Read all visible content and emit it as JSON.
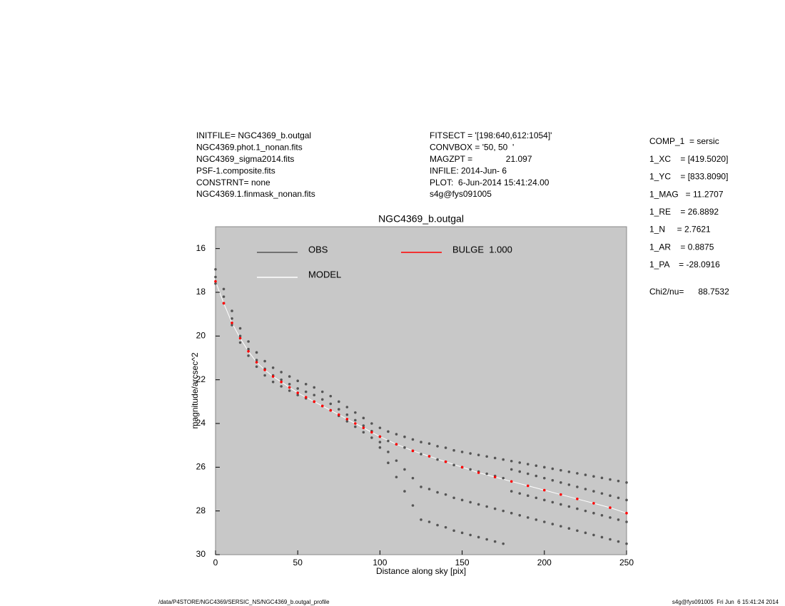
{
  "header": {
    "left": [
      "INITFILE= NGC4369_b.outgal",
      "NGC4369.phot.1_nonan.fits",
      "NGC4369_sigma2014.fits",
      "PSF-1.composite.fits",
      "CONSTRNT= none",
      "NGC4369.1.finmask_nonan.fits"
    ],
    "middle": [
      "FITSECT = '[198:640,612:1054]'",
      "CONVBOX = '50, 50  '",
      "MAGZPT =              21.097",
      "INFILE: 2014-Jun- 6",
      "PLOT:  6-Jun-2014 15:41:24.00",
      "s4g@fys091005"
    ],
    "right": [
      "COMP_1  = sersic",
      "1_XC    = [419.5020]",
      "1_YC    = [833.8090]",
      "1_MAG   = 11.2707",
      "1_RE    = 26.8892",
      "1_N     = 2.7621",
      "1_AR    = 0.8875",
      "1_PA    = -28.0916"
    ],
    "chi2": "Chi2/nu=      88.7532"
  },
  "footer": {
    "left": "/data/P4STORE/NGC4369/SERSIC_NS/NGC4369_b.outgal_profile",
    "right": "s4g@fys091005  Fri Jun  6 15:41:24 2014"
  },
  "chart_data": {
    "type": "scatter",
    "title": "NGC4369_b.outgal",
    "x_label": "Distance along sky [pix]",
    "y_label": "magnitude/arcsec^2",
    "xlim": [
      0,
      250
    ],
    "xticks": [
      0,
      50,
      100,
      150,
      200,
      250
    ],
    "ylim": [
      30,
      15
    ],
    "yticks": [
      16,
      18,
      20,
      22,
      24,
      26,
      28,
      30
    ],
    "background": "#c8c8c8",
    "series": [
      {
        "name": "MODEL",
        "color": "#ffffff",
        "style": "line",
        "x": [
          0,
          5,
          10,
          15,
          20,
          25,
          30,
          35,
          40,
          45,
          50,
          55,
          60,
          65,
          70,
          75,
          80,
          85,
          90,
          95,
          100,
          110,
          120,
          130,
          140,
          150,
          160,
          170,
          180,
          190,
          200,
          210,
          220,
          230,
          240,
          250
        ],
        "values": [
          17.5,
          18.5,
          19.4,
          20.1,
          20.7,
          21.2,
          21.55,
          21.85,
          22.1,
          22.35,
          22.6,
          22.8,
          23.0,
          23.2,
          23.4,
          23.6,
          23.8,
          24.0,
          24.2,
          24.4,
          24.6,
          24.95,
          25.25,
          25.5,
          25.75,
          26.0,
          26.25,
          26.45,
          26.65,
          26.85,
          27.05,
          27.25,
          27.45,
          27.65,
          27.85,
          28.1
        ]
      },
      {
        "name": "OBS",
        "color": "#555555",
        "style": "points",
        "x": [
          0,
          0,
          0,
          5,
          5,
          5,
          10,
          10,
          10,
          15,
          15,
          15,
          20,
          20,
          20,
          25,
          25,
          25,
          30,
          30,
          30,
          35,
          35,
          35,
          40,
          40,
          40,
          45,
          45,
          45,
          50,
          50,
          50,
          55,
          55,
          55,
          60,
          60,
          60,
          65,
          65,
          65,
          70,
          70,
          70,
          75,
          75,
          75,
          80,
          80,
          80,
          85,
          85,
          85,
          90,
          90,
          90,
          95,
          95,
          95,
          100,
          100,
          100,
          100,
          105,
          105,
          105,
          105,
          110,
          110,
          110,
          110,
          115,
          115,
          115,
          115,
          120,
          120,
          120,
          120,
          125,
          125,
          125,
          125,
          130,
          130,
          130,
          130,
          135,
          135,
          135,
          135,
          140,
          140,
          140,
          140,
          145,
          145,
          145,
          145,
          150,
          150,
          150,
          150,
          155,
          155,
          155,
          155,
          160,
          160,
          160,
          160,
          165,
          165,
          165,
          165,
          170,
          170,
          170,
          170,
          175,
          175,
          175,
          175,
          180,
          180,
          180,
          180,
          185,
          185,
          185,
          185,
          190,
          190,
          190,
          190,
          195,
          195,
          195,
          195,
          200,
          200,
          200,
          200,
          205,
          205,
          205,
          205,
          210,
          210,
          210,
          210,
          215,
          215,
          215,
          215,
          220,
          220,
          220,
          220,
          225,
          225,
          225,
          225,
          230,
          230,
          230,
          230,
          235,
          235,
          235,
          235,
          240,
          240,
          240,
          240,
          245,
          245,
          245,
          245,
          250,
          250,
          250,
          250
        ],
        "values": [
          16.95,
          17.3,
          17.6,
          17.85,
          18.2,
          18.5,
          18.85,
          19.2,
          19.5,
          19.65,
          20.0,
          20.3,
          20.25,
          20.6,
          20.9,
          20.75,
          21.1,
          21.4,
          21.15,
          21.5,
          21.8,
          21.45,
          21.8,
          22.1,
          21.65,
          22.0,
          22.3,
          21.85,
          22.2,
          22.5,
          22.05,
          22.4,
          22.7,
          22.2,
          22.55,
          22.85,
          22.35,
          22.7,
          23.0,
          22.55,
          22.9,
          23.2,
          22.75,
          23.1,
          23.4,
          23.0,
          23.35,
          23.65,
          23.25,
          23.6,
          23.9,
          23.5,
          23.85,
          24.15,
          23.75,
          24.1,
          24.4,
          24.0,
          24.35,
          24.65,
          24.2,
          24.6,
          24.85,
          25.1,
          24.37,
          24.8,
          25.3,
          25.8,
          24.49,
          24.95,
          25.7,
          26.45,
          24.61,
          25.1,
          26.1,
          27.1,
          24.73,
          25.25,
          26.5,
          27.75,
          24.85,
          25.4,
          26.9,
          28.4,
          24.92,
          25.5,
          27.0,
          28.5,
          25.04,
          25.65,
          27.15,
          28.65,
          25.11,
          25.75,
          27.25,
          28.75,
          25.23,
          25.9,
          27.4,
          28.9,
          25.3,
          26.0,
          27.5,
          29.0,
          25.37,
          26.1,
          27.6,
          29.1,
          25.44,
          26.2,
          27.7,
          29.2,
          25.51,
          26.3,
          27.8,
          29.3,
          25.58,
          26.4,
          27.9,
          29.4,
          25.65,
          26.5,
          28.0,
          29.5,
          25.72,
          26.1,
          27.1,
          28.1,
          25.79,
          26.2,
          27.2,
          28.2,
          25.86,
          26.3,
          27.3,
          28.3,
          25.93,
          26.4,
          27.4,
          28.4,
          26.0,
          26.5,
          27.5,
          28.5,
          26.07,
          26.6,
          27.6,
          28.6,
          26.14,
          26.7,
          27.7,
          28.7,
          26.21,
          26.8,
          27.8,
          28.8,
          26.28,
          26.9,
          27.9,
          28.9,
          26.35,
          27.0,
          28.0,
          29.0,
          26.42,
          27.1,
          28.1,
          29.1,
          26.49,
          27.2,
          28.2,
          29.2,
          26.56,
          27.3,
          28.3,
          29.3,
          26.63,
          27.4,
          28.4,
          29.4,
          26.7,
          27.5,
          28.5,
          29.5
        ]
      },
      {
        "name": "BULGE  1.000",
        "color": "#ff0000",
        "style": "points",
        "x": [
          0,
          5,
          10,
          15,
          20,
          25,
          30,
          35,
          40,
          45,
          50,
          55,
          60,
          65,
          70,
          75,
          80,
          85,
          90,
          95,
          100,
          110,
          120,
          130,
          140,
          150,
          160,
          170,
          180,
          190,
          200,
          210,
          220,
          230,
          240,
          250
        ],
        "values": [
          17.5,
          18.5,
          19.4,
          20.1,
          20.7,
          21.2,
          21.55,
          21.85,
          22.1,
          22.35,
          22.6,
          22.8,
          23.0,
          23.2,
          23.4,
          23.6,
          23.8,
          24.0,
          24.2,
          24.4,
          24.6,
          24.95,
          25.25,
          25.5,
          25.75,
          26.0,
          26.25,
          26.45,
          26.65,
          26.85,
          27.05,
          27.25,
          27.45,
          27.65,
          27.85,
          28.1
        ]
      }
    ]
  }
}
